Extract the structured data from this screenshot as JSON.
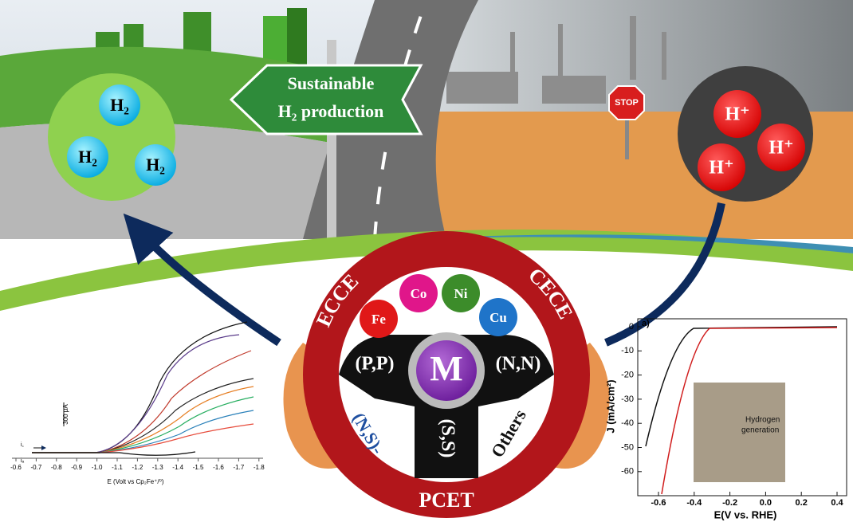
{
  "banner": {
    "line1": "Sustainable",
    "line2": "H₂ production"
  },
  "h2_bubbles": [
    "H₂",
    "H₂",
    "H₂"
  ],
  "h_plus_bubbles": [
    "H⁺",
    "H⁺",
    "H⁺"
  ],
  "stop_sign": "STOP",
  "wheel": {
    "mechanisms": [
      "ECCE",
      "CECE",
      "PCET"
    ],
    "metals": [
      "Fe",
      "Co",
      "Ni",
      "Cu"
    ],
    "center": "M",
    "ligands": [
      "(P,P)",
      "(N,N)",
      "(N,S)-",
      "(S,S)",
      "Others"
    ]
  },
  "cv_plot": {
    "xticks": [
      "-0.6",
      "-0.7",
      "-0.8",
      "-0.9",
      "-1.0",
      "-1.1",
      "-1.2",
      "-1.3",
      "-1.4",
      "-1.5",
      "-1.6",
      "-1.7",
      "-1.8"
    ],
    "xlabel": "E (Volt vs Cp₂Fe⁺/⁰)",
    "scale_bar": "300 μA",
    "current_labels": [
      "i꜀",
      "iₐ"
    ]
  },
  "polarization_plot": {
    "panel_label": "a)",
    "yticks": [
      "0",
      "-10",
      "-20",
      "-30",
      "-40",
      "-50",
      "-60"
    ],
    "xticks": [
      "-0.6",
      "-0.4",
      "-0.2",
      "0.0",
      "0.2",
      "0.4"
    ],
    "ylabel": "J (mA/cm²)",
    "xlabel": "E(V vs. RHE)",
    "inset_text": [
      "Hydrogen",
      "generation"
    ]
  }
}
